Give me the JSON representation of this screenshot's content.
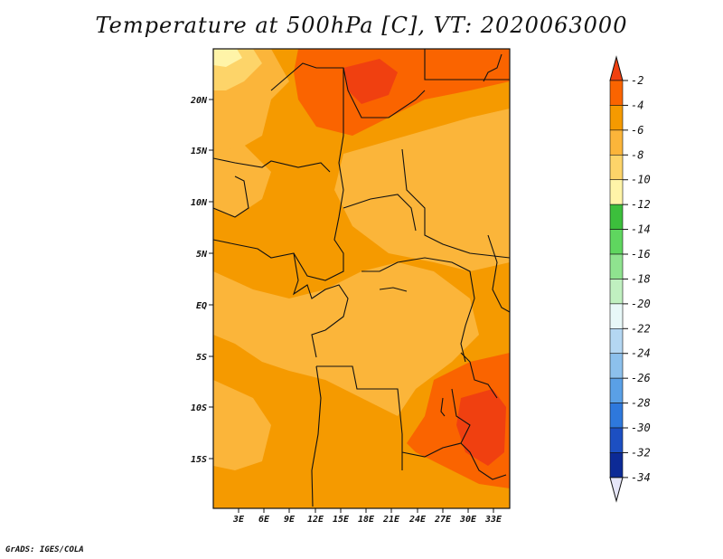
{
  "title": "Temperature at 500hPa [C], VT: 2020063000",
  "footer": "GrADS: IGES/COLA",
  "latitude_labels": [
    "20N",
    "15N",
    "10N",
    "5N",
    "EQ",
    "5S",
    "10S",
    "15S"
  ],
  "longitude_labels": [
    "3E",
    "6E",
    "9E",
    "12E",
    "15E",
    "18E",
    "21E",
    "24E",
    "27E",
    "30E",
    "33E"
  ],
  "colorbar": {
    "labels": [
      "-2",
      "-4",
      "-6",
      "-8",
      "-10",
      "-12",
      "-14",
      "-16",
      "-18",
      "-20",
      "-22",
      "-24",
      "-26",
      "-28",
      "-30",
      "-32",
      "-34"
    ],
    "colors": [
      "#f04010",
      "#fa6400",
      "#f59a00",
      "#fbb53a",
      "#fdd469",
      "#fff4a8",
      "#3cbf3c",
      "#5fd65f",
      "#8fe38f",
      "#c0f0c0",
      "#e8f8f8",
      "#b4d7f2",
      "#8cc0ec",
      "#5aa0e6",
      "#2e78dc",
      "#1c4fc2",
      "#0c2a96",
      "#08105a"
    ],
    "top_arrow_color": "#f04010",
    "bottom_arrow_color": "#e6e6f8"
  },
  "field_colors": {
    "minus4_to_minus2": "#fa6400",
    "minus6_to_minus4": "#f59a00",
    "minus8_to_minus6": "#fbb53a",
    "minus10_to_minus8": "#fdd469",
    "minus12_to_minus10": "#fff4a8",
    "warm_core": "#f04010"
  }
}
